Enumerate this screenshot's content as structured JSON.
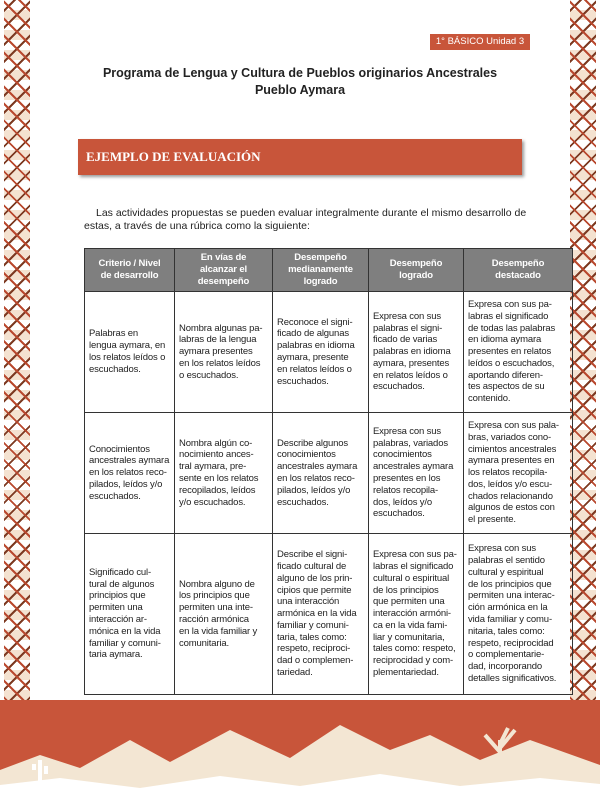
{
  "header": {
    "badge": "1° BÁSICO Unidad 3",
    "title_line1": "Programa de Lengua y Cultura de Pueblos originarios Ancestrales",
    "title_line2": "Pueblo Aymara"
  },
  "section": {
    "title": "EJEMPLO DE EVALUACIÓN",
    "intro": "Las actividades propuestas se pueden evaluar integralmente durante el mismo desarrollo de\nestas, a través de una rúbrica como la siguiente:"
  },
  "table": {
    "headers": [
      "Criterio / Nivel\nde desarrollo",
      "En vías de\nalcanzar el\ndesempeño",
      "Desempeño\nmedianamente\nlogrado",
      "Desempeño\nlogrado",
      "Desempeño\ndestacado"
    ],
    "rows": [
      [
        "Palabras en\nlengua aymara, en\nlos relatos leídos o\nescuchados.",
        "Nombra algunas pa-\nlabras de la lengua\naymara presentes\nen los relatos leídos\no escuchados.",
        "Reconoce el signi-\nficado de algunas\npalabras en idioma\naymara, presente\nen relatos leídos o\nescuchados.",
        "Expresa con sus\npalabras el signi-\nficado de varias\npalabras en idioma\naymara, presentes\nen relatos leídos o\nescuchados.",
        "Expresa con sus pa-\nlabras el significado\nde todas las palabras\nen idioma aymara\npresentes en relatos\nleídos o escuchados,\naportando diferen-\ntes aspectos de su\ncontenido."
      ],
      [
        "Conocimientos\nancestrales aymara\nen los relatos reco-\npilados, leídos y/o\nescuchados.",
        "Nombra algún co-\nnocimiento ances-\ntral aymara, pre-\nsente en los relatos\nrecopilados, leídos\ny/o escuchados.",
        "Describe algunos\nconocimientos\nancestrales aymara\nen los relatos reco-\npilados, leídos y/o\nescuchados.",
        "Expresa con sus\npalabras, variados\nconocimientos\nancestrales aymara\npresentes en los\nrelatos recopila-\ndos, leídos y/o\nescuchados.",
        "Expresa con sus pala-\nbras, variados cono-\ncimientos ancestrales\naymara presentes en\nlos relatos recopila-\ndos, leídos y/o escu-\nchados relacionando\nalgunos de estos con\nel presente."
      ],
      [
        "Significado cul-\ntural de algunos\nprincipios que\npermiten una\ninteracción ar-\nmónica en la vida\nfamiliar y comuni-\ntaria aymara.",
        "Nombra alguno de\nlos principios que\npermiten una inte-\nracción armónica\nen la vida familiar y\ncomunitaria.",
        "Describe el signi-\nficado cultural de\nalguno de los prin-\ncipios que permite\nuna interacción\narmónica en la vida\nfamiliar y comuni-\ntaria, tales como:\nrespeto, reciproci-\ndad o complemen-\ntariedad.",
        "Expresa con sus pa-\nlabras el significado\ncultural o espiritual\nde los principios\nque permiten una\ninteracción armóni-\nca en la vida fami-\nliar y comunitaria,\ntales como: respeto,\nreciprocidad y com-\nplementariedad.",
        "Expresa con sus\npalabras el sentido\ncultural y espiritual\nde los principios que\npermiten una interac-\nción armónica en la\nvida familiar y comu-\nnitaria, tales como:\nrespeto, reciprocidad\no complementarie-\ndad, incorporando\ndetalles significativos."
      ]
    ]
  }
}
